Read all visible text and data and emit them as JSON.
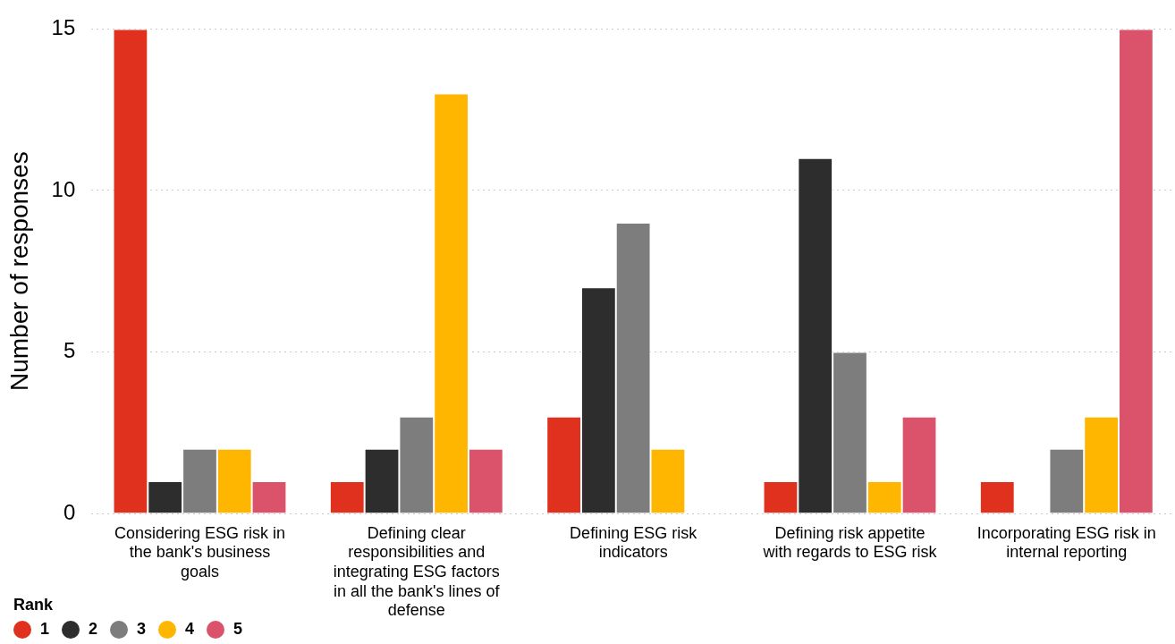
{
  "chart_data": {
    "type": "bar",
    "ylabel": "Number of responses",
    "legend_title": "Rank",
    "legend": "bottom left",
    "grid": "y",
    "categories": [
      "Considering ESG risk in the bank's business goals",
      "Defining clear responsibilities and integrating ESG factors in all the bank's lines of defense",
      "Defining ESG risk indicators",
      "Defining risk appetite with regards to ESG risk",
      "Incorporating ESG risk in internal reporting"
    ],
    "ylim": [
      0,
      15
    ],
    "yticks": [
      0,
      5,
      10,
      15
    ],
    "series": [
      {
        "name": "1",
        "color": "#e0301e",
        "values": [
          15,
          1,
          3,
          1,
          1
        ]
      },
      {
        "name": "2",
        "color": "#2d2d2d",
        "values": [
          1,
          2,
          7,
          11,
          0
        ]
      },
      {
        "name": "3",
        "color": "#7d7d7d",
        "values": [
          2,
          3,
          9,
          5,
          2
        ]
      },
      {
        "name": "4",
        "color": "#ffb600",
        "values": [
          2,
          13,
          2,
          1,
          3
        ]
      },
      {
        "name": "5",
        "color": "#db536a",
        "values": [
          1,
          2,
          0,
          3,
          15
        ]
      }
    ]
  }
}
